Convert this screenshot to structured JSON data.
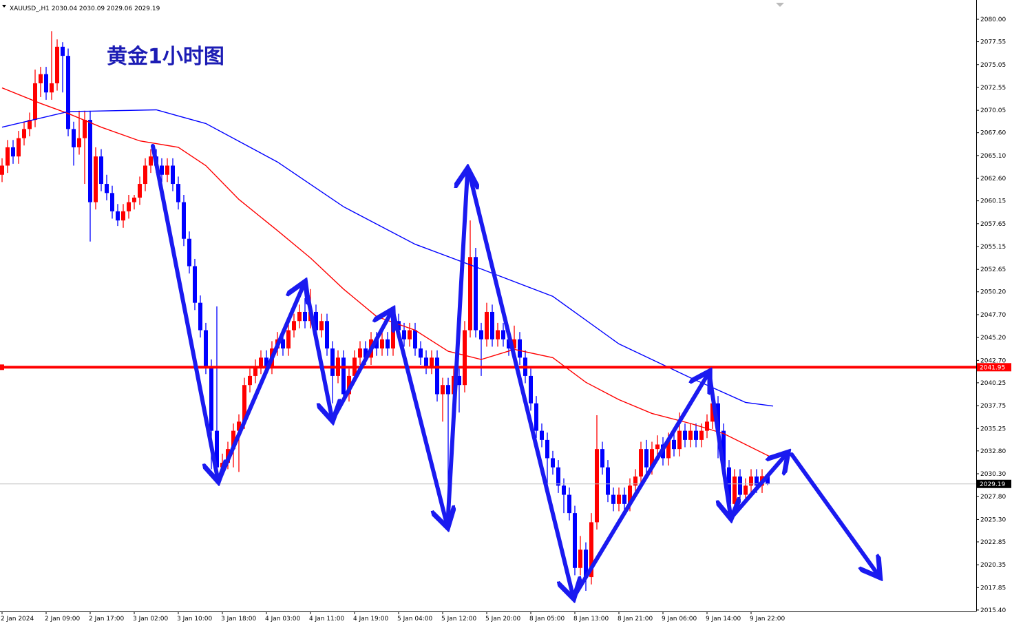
{
  "chart_data": {
    "type": "candlestick",
    "header": "XAUUSD_,H1  2030.04 2030.09 2029.06 2029.19",
    "title": "黄金1小时图",
    "up_color": "#ff0000",
    "down_color": "#0000ff",
    "xlim": [
      -0.375,
      176.875
    ],
    "ylim": [
      2015.24,
      2082.11
    ],
    "yticks": [
      {
        "value": 2080,
        "label": "2080.00"
      },
      2077.55,
      2075.05,
      2072.55,
      2070.05,
      {
        "value": 2067.6,
        "label": "2067.60"
      },
      {
        "value": 2065.1,
        "label": "2065.10"
      },
      {
        "value": 2062.6,
        "label": "2062.60"
      },
      2060.15,
      2057.65,
      2055.15,
      2052.65,
      {
        "value": 2050.2,
        "label": "2050.20"
      },
      {
        "value": 2047.7,
        "label": "2047.70"
      },
      {
        "value": 2045.2,
        "label": "2045.20"
      },
      {
        "value": 2042.7,
        "label": "2042.70"
      },
      2040.25,
      2037.75,
      2035.25,
      {
        "value": 2032.8,
        "label": "2032.80"
      },
      {
        "value": 2030.3,
        "label": "2030.30"
      },
      {
        "value": 2027.8,
        "label": "2027.80"
      },
      {
        "value": 2025.3,
        "label": "2025.30"
      },
      2022.85,
      2020.35,
      2017.85,
      {
        "value": 2015.4,
        "label": "2015.40"
      }
    ],
    "xticks": [
      {
        "value": 0,
        "label": "2 Jan 2024"
      },
      {
        "value": 8,
        "label": "2 Jan 09:00"
      },
      {
        "value": 16,
        "label": "2 Jan 17:00"
      },
      {
        "value": 24,
        "label": "3 Jan 02:00"
      },
      {
        "value": 32,
        "label": "3 Jan 10:00"
      },
      {
        "value": 40,
        "label": "3 Jan 18:00"
      },
      {
        "value": 48,
        "label": "4 Jan 03:00"
      },
      {
        "value": 56,
        "label": "4 Jan 11:00"
      },
      {
        "value": 64,
        "label": "4 Jan 19:00"
      },
      {
        "value": 72,
        "label": "5 Jan 04:00"
      },
      {
        "value": 80,
        "label": "5 Jan 12:00"
      },
      {
        "value": 88,
        "label": "5 Jan 20:00"
      },
      {
        "value": 96,
        "label": "8 Jan 05:00"
      },
      {
        "value": 104,
        "label": "8 Jan 13:00"
      },
      {
        "value": 112,
        "label": "8 Jan 21:00"
      },
      {
        "value": 120,
        "label": "9 Jan 06:00"
      },
      {
        "value": 128,
        "label": "9 Jan 14:00"
      },
      {
        "value": 136,
        "label": "9 Jan 22:00"
      }
    ],
    "hlines": [
      {
        "value": 2041.95,
        "color": "#ff0000"
      },
      {
        "value": 2029.19,
        "color": "#c0c0c0"
      }
    ],
    "lines": [
      {
        "color": "#ff0000",
        "x": [
          0,
          7,
          12,
          18,
          25,
          32,
          37,
          43,
          50,
          56,
          62,
          68,
          75,
          81,
          87,
          93,
          100,
          106,
          112,
          118,
          125,
          131,
          140
        ],
        "values": [
          2072.5,
          2070.8,
          2069.7,
          2068.2,
          2066.7,
          2066,
          2064,
          2060.3,
          2056.9,
          2053.9,
          2050.5,
          2047.5,
          2046,
          2043.7,
          2042.8,
          2043.9,
          2043,
          2040.3,
          2038.4,
          2036.9,
          2035.8,
          2034.7,
          2032
        ]
      },
      {
        "color": "#0000ff",
        "x": [
          0,
          12,
          28,
          37,
          50,
          62,
          75,
          87,
          100,
          112,
          125,
          135,
          140
        ],
        "values": [
          2068.2,
          2069.9,
          2070.1,
          2068.6,
          2064.4,
          2059.5,
          2055.4,
          2052.7,
          2049.7,
          2044.5,
          2040.8,
          2038.1,
          2037.7
        ]
      }
    ],
    "candles": [
      [
        2063,
        2064.8,
        2062.2,
        2064
      ],
      [
        2064,
        2066.8,
        2063.2,
        2066
      ],
      [
        2066,
        2066.8,
        2064.2,
        2065
      ],
      [
        2065,
        2067.8,
        2064.2,
        2067
      ],
      [
        2067,
        2068.8,
        2066.2,
        2068
      ],
      [
        2068,
        2069.8,
        2067.2,
        2069
      ],
      [
        2069,
        2074.5,
        2068.2,
        2073
      ],
      [
        2073,
        2074.8,
        2071.5,
        2074
      ],
      [
        2074,
        2074.8,
        2071.2,
        2072
      ],
      [
        2072,
        2078.7,
        2071.2,
        2073
      ],
      [
        2073,
        2077.8,
        2072.2,
        2077
      ],
      [
        2077,
        2077.5,
        2072,
        2076
      ],
      [
        2076,
        2076.8,
        2067.2,
        2068
      ],
      [
        2068,
        2068.8,
        2064,
        2066
      ],
      [
        2066,
        2070,
        2065.2,
        2067
      ],
      [
        2067,
        2070,
        2062,
        2069
      ],
      [
        2069,
        2070,
        2055.7,
        2060
      ],
      [
        2060,
        2066,
        2059.2,
        2065
      ],
      [
        2065,
        2065.8,
        2061.2,
        2062
      ],
      [
        2062,
        2063,
        2060.2,
        2061
      ],
      [
        2061,
        2061.8,
        2058.2,
        2059
      ],
      [
        2059,
        2059.8,
        2057.4,
        2058
      ],
      [
        2058,
        2059.8,
        2057.2,
        2059
      ],
      [
        2059,
        2060.8,
        2058.2,
        2060
      ],
      [
        2060,
        2060.8,
        2059.2,
        2060.5
      ],
      [
        2060.5,
        2062.8,
        2059.7,
        2062
      ],
      [
        2062,
        2064.8,
        2061.2,
        2064
      ],
      [
        2064,
        2065.8,
        2063.2,
        2065
      ],
      [
        2065,
        2065.8,
        2063.2,
        2064
      ],
      [
        2064,
        2064.8,
        2062.2,
        2063
      ],
      [
        2063,
        2064.8,
        2062.2,
        2064
      ],
      [
        2064,
        2064.8,
        2061.2,
        2062
      ],
      [
        2062,
        2062.8,
        2059.2,
        2060
      ],
      [
        2060,
        2060.8,
        2055.2,
        2056
      ],
      [
        2056,
        2056.8,
        2052.2,
        2053
      ],
      [
        2053,
        2053.8,
        2048.2,
        2049
      ],
      [
        2049,
        2049.8,
        2045.2,
        2046
      ],
      [
        2046,
        2046.8,
        2041.2,
        2042
      ],
      [
        2042,
        2042.8,
        2030.8,
        2035
      ],
      [
        2035,
        2048.6,
        2030.2,
        2031
      ],
      [
        2031,
        2032.5,
        2030.2,
        2031.5
      ],
      [
        2031.5,
        2033.8,
        2030.8,
        2033
      ],
      [
        2033,
        2035.8,
        2031,
        2035
      ],
      [
        2035,
        2036.8,
        2030.5,
        2036
      ],
      [
        2036,
        2040.8,
        2035.2,
        2040
      ],
      [
        2040,
        2041.8,
        2039.2,
        2041
      ],
      [
        2041,
        2042.8,
        2040.2,
        2042
      ],
      [
        2042,
        2043.8,
        2041.2,
        2043
      ],
      [
        2043,
        2043.8,
        2041.2,
        2042
      ],
      [
        2042,
        2044.8,
        2041.2,
        2044
      ],
      [
        2044,
        2045.8,
        2043.2,
        2045
      ],
      [
        2045,
        2045.8,
        2043.2,
        2044
      ],
      [
        2044,
        2046.8,
        2043.2,
        2046
      ],
      [
        2046,
        2047.8,
        2045.2,
        2047
      ],
      [
        2047,
        2048.8,
        2046.2,
        2048
      ],
      [
        2048,
        2049.5,
        2046.2,
        2047
      ],
      [
        2047,
        2050.5,
        2046.2,
        2048
      ],
      [
        2048,
        2048.8,
        2045.2,
        2046
      ],
      [
        2046,
        2047.8,
        2045.2,
        2047
      ],
      [
        2047,
        2047.8,
        2043.2,
        2044
      ],
      [
        2044,
        2044.8,
        2038,
        2041
      ],
      [
        2041,
        2043.8,
        2040.2,
        2043
      ],
      [
        2043,
        2043.8,
        2038.2,
        2039
      ],
      [
        2039,
        2041.8,
        2038.2,
        2041
      ],
      [
        2041,
        2043.8,
        2040.2,
        2043
      ],
      [
        2043,
        2044.8,
        2042.2,
        2044
      ],
      [
        2044,
        2044.8,
        2042.2,
        2043
      ],
      [
        2043,
        2045.8,
        2042.2,
        2045
      ],
      [
        2045,
        2045.8,
        2043.2,
        2044
      ],
      [
        2044,
        2045.8,
        2043.2,
        2045
      ],
      [
        2045,
        2045.8,
        2043.2,
        2044
      ],
      [
        2044,
        2047.8,
        2043.2,
        2047
      ],
      [
        2047,
        2047.8,
        2045.2,
        2046
      ],
      [
        2046,
        2046.8,
        2044.2,
        2045
      ],
      [
        2045,
        2046.8,
        2044.2,
        2046
      ],
      [
        2046,
        2046.8,
        2043.2,
        2044
      ],
      [
        2044,
        2044.8,
        2042.2,
        2043
      ],
      [
        2043,
        2043.8,
        2041.2,
        2042
      ],
      [
        2042,
        2043.8,
        2041.2,
        2043
      ],
      [
        2043,
        2043.8,
        2038.2,
        2039
      ],
      [
        2039,
        2040.8,
        2036,
        2040
      ],
      [
        2040,
        2040.8,
        2024.1,
        2039
      ],
      [
        2039,
        2041.8,
        2038.2,
        2041
      ],
      [
        2041,
        2041.8,
        2037,
        2040
      ],
      [
        2040,
        2047,
        2039.2,
        2046
      ],
      [
        2046,
        2058,
        2045.2,
        2054
      ],
      [
        2054,
        2055,
        2045.2,
        2046
      ],
      [
        2046,
        2046.8,
        2041,
        2045
      ],
      [
        2045,
        2049,
        2044.2,
        2048
      ],
      [
        2048,
        2048.8,
        2044.2,
        2045
      ],
      [
        2045,
        2046.8,
        2044.2,
        2046
      ],
      [
        2046,
        2046.8,
        2044.2,
        2045
      ],
      [
        2045,
        2045.8,
        2043.2,
        2044
      ],
      [
        2044,
        2046.5,
        2043.2,
        2045
      ],
      [
        2045,
        2045.8,
        2042.2,
        2043
      ],
      [
        2043,
        2043.8,
        2040.2,
        2041
      ],
      [
        2041,
        2041.8,
        2037.2,
        2038
      ],
      [
        2038,
        2038.8,
        2034.2,
        2035
      ],
      [
        2035,
        2035.8,
        2033.2,
        2034
      ],
      [
        2034,
        2034.8,
        2028,
        2032
      ],
      [
        2032,
        2032.8,
        2030.2,
        2031
      ],
      [
        2031,
        2031.8,
        2028.2,
        2029
      ],
      [
        2029,
        2029.8,
        2026,
        2028
      ],
      [
        2028,
        2028.8,
        2025.2,
        2026
      ],
      [
        2026,
        2026.8,
        2019.2,
        2020
      ],
      [
        2020,
        2023.5,
        2019.2,
        2022
      ],
      [
        2022,
        2022.8,
        2017.5,
        2019
      ],
      [
        2019,
        2026,
        2018.2,
        2025
      ],
      [
        2025,
        2036.7,
        2024.2,
        2033
      ],
      [
        2033,
        2033.8,
        2030.2,
        2031
      ],
      [
        2031,
        2031.8,
        2027.2,
        2028
      ],
      [
        2028,
        2028.8,
        2026.2,
        2027
      ],
      [
        2027,
        2028.8,
        2026.2,
        2028
      ],
      [
        2028,
        2028.8,
        2026.2,
        2027
      ],
      [
        2027,
        2029.8,
        2026.2,
        2029
      ],
      [
        2029,
        2030.8,
        2028.2,
        2030
      ],
      [
        2030,
        2033.8,
        2029.2,
        2033
      ],
      [
        2033,
        2034,
        2030.2,
        2031
      ],
      [
        2031,
        2033.8,
        2030.2,
        2033
      ],
      [
        2033,
        2034.5,
        2032,
        2033.5
      ],
      [
        2033.5,
        2034.3,
        2031.2,
        2032
      ],
      [
        2032,
        2034.8,
        2031.2,
        2034
      ],
      [
        2034,
        2034.8,
        2032.2,
        2033
      ],
      [
        2033,
        2037,
        2032.2,
        2035
      ],
      [
        2035,
        2035.8,
        2033.2,
        2034
      ],
      [
        2034,
        2035.8,
        2033.2,
        2035
      ],
      [
        2035,
        2035.8,
        2033.2,
        2034
      ],
      [
        2034,
        2035.8,
        2033.2,
        2035
      ],
      [
        2035,
        2036.8,
        2034.2,
        2036
      ],
      [
        2036,
        2040,
        2035.2,
        2038
      ],
      [
        2038,
        2038.8,
        2032,
        2035
      ],
      [
        2035,
        2035.8,
        2030.2,
        2031
      ],
      [
        2031,
        2031.8,
        2026.2,
        2027
      ],
      [
        2027,
        2030.8,
        2026.2,
        2030
      ],
      [
        2030,
        2030.8,
        2027.2,
        2028
      ],
      [
        2028,
        2029.8,
        2027.2,
        2029
      ],
      [
        2029,
        2030.8,
        2028.2,
        2030
      ],
      [
        2030,
        2030.8,
        2028.2,
        2029
      ],
      [
        2029,
        2030.8,
        2028.2,
        2030.04
      ],
      [
        2030.04,
        2030.09,
        2029.06,
        2029.19
      ]
    ]
  }
}
